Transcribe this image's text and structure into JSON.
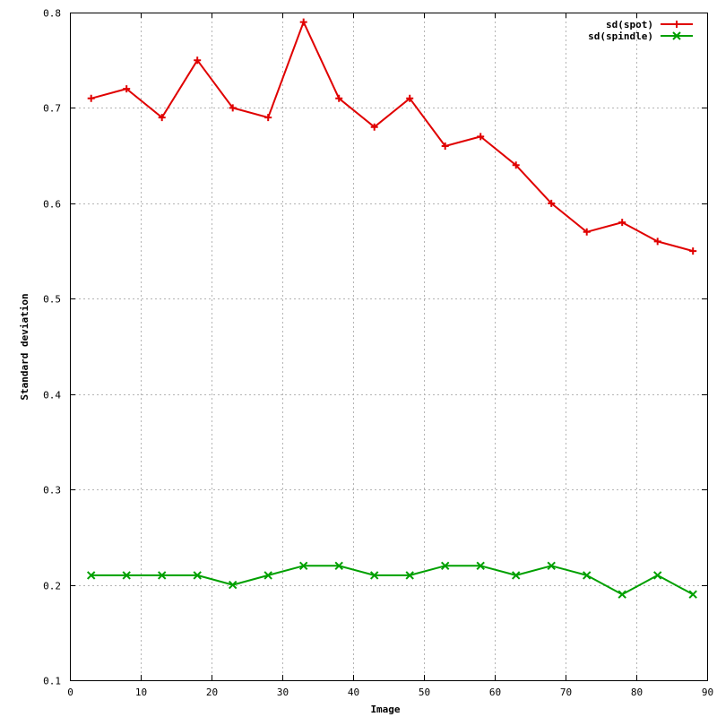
{
  "chart_data": {
    "type": "line",
    "xlabel": "Image",
    "ylabel": "Standard deviation",
    "xlim": [
      0,
      90
    ],
    "ylim": [
      0.1,
      0.8
    ],
    "x_ticks": [
      0,
      10,
      20,
      30,
      40,
      50,
      60,
      70,
      80,
      90
    ],
    "y_ticks": [
      0.1,
      0.2,
      0.3,
      0.4,
      0.5,
      0.6,
      0.7,
      0.8
    ],
    "grid": true,
    "legend_position": "top-right",
    "x": [
      3,
      8,
      13,
      18,
      23,
      28,
      33,
      38,
      43,
      48,
      53,
      58,
      63,
      68,
      73,
      78,
      83,
      88
    ],
    "series": [
      {
        "name": "sd(spot)",
        "color": "#e00000",
        "marker": "plus",
        "values": [
          0.71,
          0.72,
          0.69,
          0.75,
          0.7,
          0.69,
          0.79,
          0.71,
          0.68,
          0.71,
          0.66,
          0.67,
          0.64,
          0.6,
          0.57,
          0.58,
          0.56,
          0.55
        ]
      },
      {
        "name": "sd(spindle)",
        "color": "#00a000",
        "marker": "cross",
        "values": [
          0.21,
          0.21,
          0.21,
          0.21,
          0.2,
          0.21,
          0.22,
          0.22,
          0.21,
          0.21,
          0.22,
          0.22,
          0.21,
          0.22,
          0.21,
          0.19,
          0.21,
          0.19
        ]
      }
    ]
  }
}
